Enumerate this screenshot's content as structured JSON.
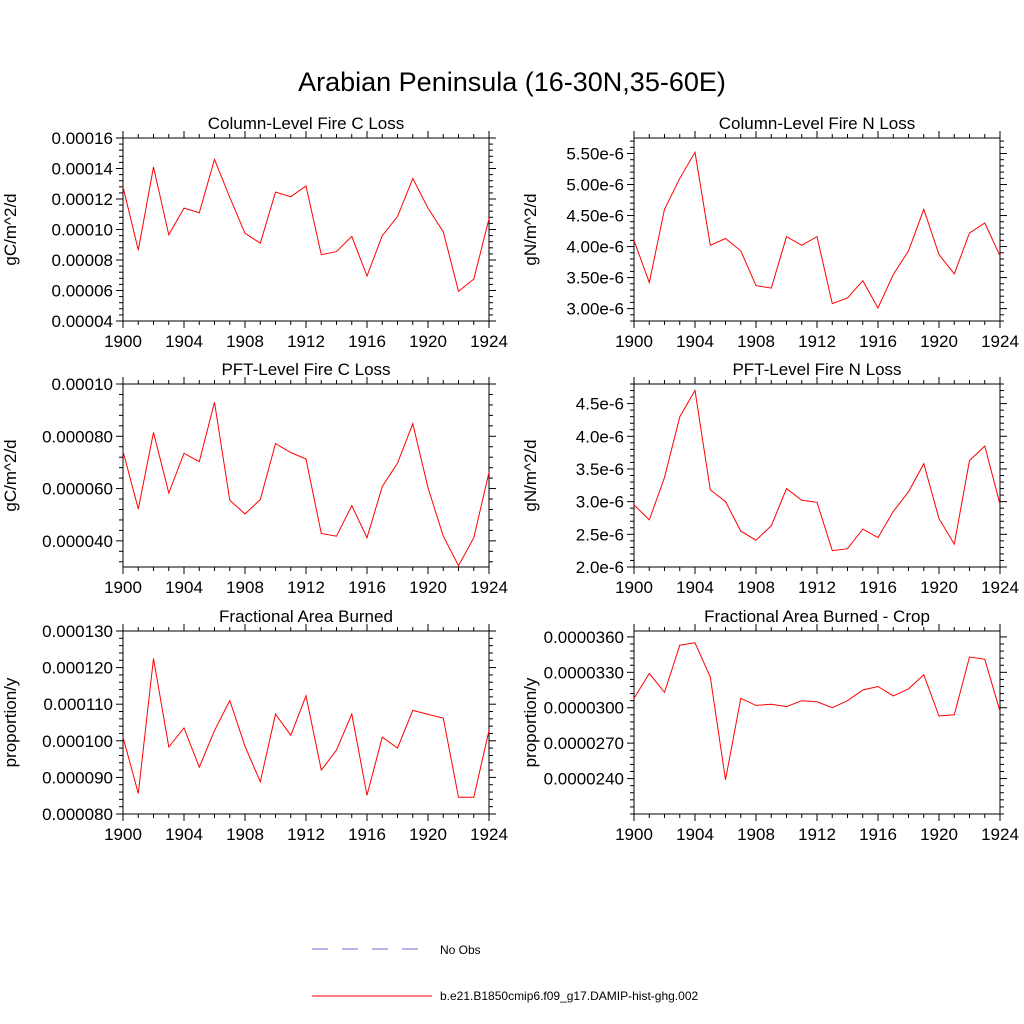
{
  "figure": {
    "title": "Arabian Peninsula (16-30N,35-60E)"
  },
  "legend": {
    "entries": [
      {
        "label": "No Obs",
        "color": "#6b6bd6",
        "style": "dashed"
      },
      {
        "label": "b.e21.B1850cmip6.f09_g17.DAMIP-hist-ghg.002",
        "color": "#ff0000",
        "style": "solid"
      }
    ]
  },
  "chart_data": [
    {
      "type": "line",
      "title": "Column-Level Fire C Loss",
      "ylabel": "gC/m^2/d",
      "xlim": [
        1900,
        1924
      ],
      "ylim": [
        4e-05,
        0.00016
      ],
      "xticks": [
        1900,
        1904,
        1908,
        1912,
        1916,
        1920,
        1924
      ],
      "xtick_labels": [
        "1900",
        "1904",
        "1908",
        "1912",
        "1916",
        "1920",
        "1924"
      ],
      "yticks": [
        4e-05,
        6e-05,
        8e-05,
        0.0001,
        0.00012,
        0.00014,
        0.00016
      ],
      "ytick_labels": [
        "0.00004",
        "0.00006",
        "0.00008",
        "0.00010",
        "0.00012",
        "0.00014",
        "0.00016"
      ],
      "series": [
        {
          "color": "#ff0000",
          "x": [
            1900,
            1901,
            1902,
            1903,
            1904,
            1905,
            1906,
            1907,
            1908,
            1909,
            1910,
            1911,
            1912,
            1913,
            1914,
            1915,
            1916,
            1917,
            1918,
            1919,
            1920,
            1921,
            1922,
            1923,
            1924
          ],
          "y": [
            0.000128,
            8.65e-05,
            0.000141,
            9.65e-05,
            0.000114,
            0.000111,
            0.000146,
            0.000121,
            9.75e-05,
            9.1e-05,
            0.0001245,
            0.0001215,
            0.0001285,
            8.35e-05,
            8.55e-05,
            9.55e-05,
            6.95e-05,
            9.6e-05,
            0.0001085,
            0.0001335,
            0.000114,
            9.85e-05,
            5.95e-05,
            6.75e-05,
            0.000107
          ]
        }
      ]
    },
    {
      "type": "line",
      "title": "Column-Level Fire N Loss",
      "ylabel": "gN/m^2/d",
      "xlim": [
        1900,
        1924
      ],
      "ylim": [
        2.8e-06,
        5.75e-06
      ],
      "xticks": [
        1900,
        1904,
        1908,
        1912,
        1916,
        1920,
        1924
      ],
      "xtick_labels": [
        "1900",
        "1904",
        "1908",
        "1912",
        "1916",
        "1920",
        "1924"
      ],
      "yticks": [
        3e-06,
        3.5e-06,
        4e-06,
        4.5e-06,
        5e-06,
        5.5e-06
      ],
      "ytick_labels": [
        "3.00e-6",
        "3.50e-6",
        "4.00e-6",
        "4.50e-6",
        "5.00e-6",
        "5.50e-6"
      ],
      "series": [
        {
          "color": "#ff0000",
          "x": [
            1900,
            1901,
            1902,
            1903,
            1904,
            1905,
            1906,
            1907,
            1908,
            1909,
            1910,
            1911,
            1912,
            1913,
            1914,
            1915,
            1916,
            1917,
            1918,
            1919,
            1920,
            1921,
            1922,
            1923,
            1924
          ],
          "y": [
            4.1e-06,
            3.42e-06,
            4.6e-06,
            5.1e-06,
            5.52e-06,
            4.02e-06,
            4.13e-06,
            3.93e-06,
            3.37e-06,
            3.33e-06,
            4.16e-06,
            4.02e-06,
            4.16e-06,
            3.08e-06,
            3.17e-06,
            3.45e-06,
            3.01e-06,
            3.55e-06,
            3.93e-06,
            4.6e-06,
            3.87e-06,
            3.56e-06,
            4.22e-06,
            4.38e-06,
            3.85e-06
          ]
        }
      ]
    },
    {
      "type": "line",
      "title": "PFT-Level Fire C Loss",
      "ylabel": "gC/m^2/d",
      "xlim": [
        1900,
        1924
      ],
      "ylim": [
        3e-05,
        0.0001
      ],
      "xticks": [
        1900,
        1904,
        1908,
        1912,
        1916,
        1920,
        1924
      ],
      "xtick_labels": [
        "1900",
        "1904",
        "1908",
        "1912",
        "1916",
        "1920",
        "1924"
      ],
      "yticks": [
        4e-05,
        6e-05,
        8e-05,
        0.0001
      ],
      "ytick_labels": [
        "0.000040",
        "0.000060",
        "0.000080",
        "0.00010"
      ],
      "series": [
        {
          "color": "#ff0000",
          "x": [
            1900,
            1901,
            1902,
            1903,
            1904,
            1905,
            1906,
            1907,
            1908,
            1909,
            1910,
            1911,
            1912,
            1913,
            1914,
            1915,
            1916,
            1917,
            1918,
            1919,
            1920,
            1921,
            1922,
            1923,
            1924
          ],
          "y": [
            7.43e-05,
            5.22e-05,
            8.15e-05,
            5.83e-05,
            7.35e-05,
            7.03e-05,
            9.3e-05,
            5.55e-05,
            5.03e-05,
            5.58e-05,
            7.72e-05,
            7.38e-05,
            7.13e-05,
            4.28e-05,
            4.18e-05,
            5.35e-05,
            4.12e-05,
            6.08e-05,
            6.97e-05,
            8.48e-05,
            6.03e-05,
            4.18e-05,
            3.05e-05,
            4.12e-05,
            6.62e-05
          ]
        }
      ]
    },
    {
      "type": "line",
      "title": "PFT-Level Fire N Loss",
      "ylabel": "gN/m^2/d",
      "xlim": [
        1900,
        1924
      ],
      "ylim": [
        2e-06,
        4.8e-06
      ],
      "xticks": [
        1900,
        1904,
        1908,
        1912,
        1916,
        1920,
        1924
      ],
      "xtick_labels": [
        "1900",
        "1904",
        "1908",
        "1912",
        "1916",
        "1920",
        "1924"
      ],
      "yticks": [
        2e-06,
        2.5e-06,
        3e-06,
        3.5e-06,
        4e-06,
        4.5e-06
      ],
      "ytick_labels": [
        "2.0e-6",
        "2.5e-6",
        "3.0e-6",
        "3.5e-6",
        "4.0e-6",
        "4.5e-6"
      ],
      "series": [
        {
          "color": "#ff0000",
          "x": [
            1900,
            1901,
            1902,
            1903,
            1904,
            1905,
            1906,
            1907,
            1908,
            1909,
            1910,
            1911,
            1912,
            1913,
            1914,
            1915,
            1916,
            1917,
            1918,
            1919,
            1920,
            1921,
            1922,
            1923,
            1924
          ],
          "y": [
            2.95e-06,
            2.72e-06,
            3.37e-06,
            4.3e-06,
            4.7e-06,
            3.18e-06,
            3e-06,
            2.55e-06,
            2.41e-06,
            2.63e-06,
            3.2e-06,
            3.02e-06,
            2.99e-06,
            2.25e-06,
            2.28e-06,
            2.58e-06,
            2.45e-06,
            2.85e-06,
            3.15e-06,
            3.58e-06,
            2.74e-06,
            2.35e-06,
            3.63e-06,
            3.85e-06,
            2.96e-06
          ]
        }
      ]
    },
    {
      "type": "line",
      "title": "Fractional Area Burned",
      "ylabel": "proportion/y",
      "xlim": [
        1900,
        1924
      ],
      "ylim": [
        8e-05,
        0.00013
      ],
      "xticks": [
        1900,
        1904,
        1908,
        1912,
        1916,
        1920,
        1924
      ],
      "xtick_labels": [
        "1900",
        "1904",
        "1908",
        "1912",
        "1916",
        "1920",
        "1924"
      ],
      "yticks": [
        8e-05,
        9e-05,
        0.0001,
        0.00011,
        0.00012,
        0.00013
      ],
      "ytick_labels": [
        "0.000080",
        "0.000090",
        "0.000100",
        "0.000110",
        "0.000120",
        "0.000130"
      ],
      "series": [
        {
          "color": "#ff0000",
          "x": [
            1900,
            1901,
            1902,
            1903,
            1904,
            1905,
            1906,
            1907,
            1908,
            1909,
            1910,
            1911,
            1912,
            1913,
            1914,
            1915,
            1916,
            1917,
            1918,
            1919,
            1920,
            1921,
            1922,
            1923,
            1924
          ],
          "y": [
            0.000101,
            8.56e-05,
            0.0001225,
            9.83e-05,
            0.0001035,
            9.28e-05,
            0.0001028,
            0.000111,
            9.85e-05,
            8.88e-05,
            0.0001073,
            0.0001015,
            0.0001123,
            9.2e-05,
            9.75e-05,
            0.0001073,
            8.51e-05,
            0.000101,
            9.8e-05,
            0.0001083,
            0.0001072,
            0.0001062,
            8.46e-05,
            8.46e-05,
            0.0001028
          ]
        }
      ]
    },
    {
      "type": "line",
      "title": "Fractional Area Burned - Crop",
      "ylabel": "proportion/y",
      "xlim": [
        1900,
        1924
      ],
      "ylim": [
        2.1e-05,
        3.65e-05
      ],
      "xticks": [
        1900,
        1904,
        1908,
        1912,
        1916,
        1920,
        1924
      ],
      "xtick_labels": [
        "1900",
        "1904",
        "1908",
        "1912",
        "1916",
        "1920",
        "1924"
      ],
      "yticks": [
        2.4e-05,
        2.7e-05,
        3e-05,
        3.3e-05,
        3.6e-05
      ],
      "ytick_labels": [
        "0.0000240",
        "0.0000270",
        "0.0000300",
        "0.0000330",
        "0.0000360"
      ],
      "series": [
        {
          "color": "#ff0000",
          "x": [
            1900,
            1901,
            1902,
            1903,
            1904,
            1905,
            1906,
            1907,
            1908,
            1909,
            1910,
            1911,
            1912,
            1913,
            1914,
            1915,
            1916,
            1917,
            1918,
            1919,
            1920,
            1921,
            1922,
            1923,
            1924
          ],
          "y": [
            3.08e-05,
            3.29e-05,
            3.13e-05,
            3.53e-05,
            3.55e-05,
            3.26e-05,
            2.39e-05,
            3.08e-05,
            3.02e-05,
            3.03e-05,
            3.01e-05,
            3.06e-05,
            3.05e-05,
            3e-05,
            3.06e-05,
            3.15e-05,
            3.18e-05,
            3.1e-05,
            3.16e-05,
            3.28e-05,
            2.93e-05,
            2.94e-05,
            3.43e-05,
            3.41e-05,
            2.97e-05
          ]
        }
      ]
    }
  ]
}
